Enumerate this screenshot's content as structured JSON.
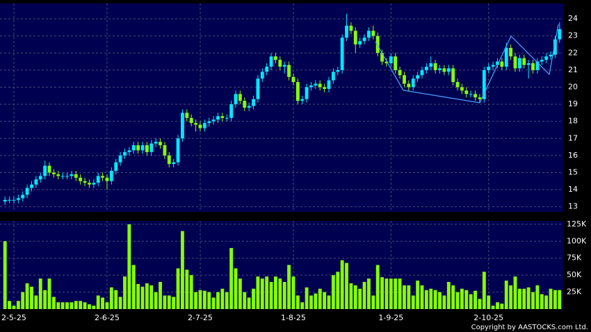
{
  "chart_data": {
    "type": "candlestick",
    "categories": [
      null,
      null,
      "2-5-25",
      null,
      null,
      null,
      null,
      null,
      null,
      null,
      null,
      null,
      null,
      null,
      null,
      null,
      null,
      null,
      null,
      null,
      null,
      null,
      null,
      "2-6-25",
      null,
      null,
      null,
      null,
      null,
      null,
      null,
      null,
      null,
      null,
      null,
      null,
      null,
      null,
      null,
      null,
      null,
      null,
      null,
      null,
      "2-7-25",
      null,
      null,
      null,
      null,
      null,
      null,
      null,
      null,
      null,
      null,
      null,
      null,
      null,
      null,
      null,
      null,
      null,
      null,
      null,
      null,
      "1-8-25",
      null,
      null,
      null,
      null,
      null,
      null,
      null,
      null,
      null,
      null,
      null,
      null,
      null,
      null,
      null,
      null,
      null,
      null,
      null,
      null,
      null,
      "1-9-25",
      null,
      null,
      null,
      null,
      null,
      null,
      null,
      null,
      null,
      null,
      null,
      null,
      null,
      null,
      null,
      null,
      null,
      null,
      null,
      null,
      null,
      "2-10-25",
      null,
      null,
      null,
      null,
      null,
      null,
      null,
      null,
      null,
      null,
      null,
      null,
      null,
      null,
      null,
      null
    ],
    "open": [
      13.3,
      13.4,
      13.4,
      13.4,
      13.5,
      13.7,
      14.1,
      14.3,
      14.6,
      14.8,
      15.4,
      15.0,
      14.9,
      14.8,
      14.8,
      14.8,
      14.9,
      14.7,
      14.5,
      14.4,
      14.3,
      14.4,
      14.8,
      14.7,
      14.5,
      15.1,
      15.6,
      16.0,
      16.2,
      16.3,
      16.6,
      16.3,
      16.6,
      16.2,
      16.7,
      16.8,
      16.6,
      16.0,
      15.5,
      15.6,
      17.0,
      18.5,
      18.2,
      17.9,
      17.8,
      17.6,
      17.9,
      18.0,
      18.1,
      18.3,
      18.2,
      18.2,
      19.0,
      19.6,
      19.2,
      18.8,
      18.9,
      19.3,
      20.5,
      20.9,
      21.2,
      21.8,
      21.6,
      21.2,
      21.3,
      20.6,
      20.3,
      19.2,
      19.3,
      20.0,
      20.1,
      20.2,
      20.0,
      19.9,
      20.4,
      20.9,
      21.0,
      22.9,
      23.6,
      23.3,
      22.5,
      22.7,
      22.9,
      23.3,
      23.0,
      22.0,
      21.5,
      21.4,
      21.8,
      21.0,
      20.7,
      20.2,
      20.0,
      20.5,
      20.7,
      21.0,
      21.2,
      21.4,
      21.0,
      21.1,
      20.9,
      21.1,
      20.3,
      20.0,
      19.8,
      19.6,
      19.6,
      19.4,
      19.3,
      21.0,
      21.2,
      21.3,
      21.5,
      21.2,
      22.3,
      21.8,
      21.1,
      21.7,
      21.3,
      21.4,
      21.0,
      21.5,
      21.6,
      21.8,
      21.9,
      22.8
    ],
    "high": [
      13.6,
      13.6,
      13.6,
      13.7,
      13.9,
      14.3,
      14.5,
      14.8,
      15.0,
      15.7,
      15.6,
      15.2,
      15.1,
      15.0,
      15.0,
      15.1,
      15.1,
      14.9,
      14.7,
      14.6,
      14.6,
      15.0,
      15.0,
      14.9,
      15.3,
      15.8,
      16.2,
      16.4,
      16.5,
      16.8,
      16.8,
      16.8,
      16.8,
      16.9,
      17.0,
      17.0,
      16.8,
      16.2,
      15.8,
      17.2,
      18.7,
      18.7,
      18.4,
      18.1,
      18.0,
      18.1,
      18.2,
      18.3,
      18.5,
      18.5,
      18.4,
      19.2,
      19.8,
      19.8,
      19.4,
      19.1,
      19.5,
      20.7,
      21.1,
      21.4,
      22.0,
      22.0,
      21.8,
      21.5,
      21.5,
      20.8,
      20.5,
      19.5,
      20.2,
      20.3,
      20.4,
      20.4,
      20.2,
      20.6,
      21.1,
      21.2,
      23.1,
      24.3,
      23.8,
      23.5,
      22.9,
      23.1,
      23.5,
      23.6,
      23.2,
      22.2,
      21.7,
      22.0,
      22.0,
      21.2,
      20.9,
      20.4,
      20.7,
      20.9,
      21.2,
      21.4,
      21.8,
      21.6,
      21.3,
      21.3,
      21.3,
      21.3,
      20.5,
      20.2,
      20.0,
      19.8,
      19.8,
      19.6,
      21.2,
      21.4,
      21.5,
      21.7,
      21.7,
      22.6,
      22.5,
      22.0,
      21.9,
      21.9,
      21.6,
      21.6,
      21.7,
      21.8,
      22.0,
      22.1,
      23.0,
      23.8
    ],
    "low": [
      13.1,
      13.2,
      13.2,
      13.2,
      13.3,
      13.5,
      13.9,
      14.1,
      14.4,
      14.6,
      14.8,
      14.7,
      14.6,
      14.6,
      14.6,
      14.6,
      14.5,
      14.3,
      14.2,
      14.1,
      14.1,
      14.2,
      14.5,
      14.0,
      14.3,
      14.9,
      15.4,
      15.8,
      16.0,
      16.1,
      16.1,
      16.1,
      16.0,
      16.0,
      16.5,
      16.4,
      15.8,
      15.3,
      15.3,
      15.4,
      16.8,
      18.0,
      17.7,
      17.4,
      17.4,
      17.4,
      17.7,
      17.8,
      17.9,
      18.0,
      18.0,
      18.0,
      18.8,
      19.0,
      18.6,
      18.6,
      18.7,
      19.1,
      20.3,
      20.7,
      21.0,
      21.4,
      21.0,
      20.8,
      20.4,
      20.1,
      19.0,
      19.0,
      19.1,
      19.8,
      19.9,
      19.8,
      19.7,
      19.7,
      20.2,
      20.7,
      20.8,
      22.7,
      23.1,
      22.0,
      22.3,
      22.5,
      22.7,
      22.8,
      21.8,
      21.3,
      21.2,
      21.2,
      20.8,
      20.5,
      20.0,
      19.8,
      19.8,
      20.3,
      20.5,
      20.8,
      21.0,
      20.8,
      20.8,
      20.7,
      20.7,
      20.1,
      19.8,
      19.6,
      19.4,
      19.4,
      19.2,
      19.1,
      19.1,
      20.8,
      21.0,
      21.1,
      21.0,
      21.0,
      21.6,
      20.9,
      20.9,
      21.1,
      20.5,
      20.8,
      20.8,
      21.3,
      21.4,
      21.6,
      21.7,
      22.6
    ],
    "close": [
      13.4,
      13.4,
      13.4,
      13.5,
      13.7,
      14.1,
      14.3,
      14.6,
      14.8,
      15.4,
      15.0,
      14.9,
      14.8,
      14.8,
      14.8,
      14.9,
      14.7,
      14.5,
      14.4,
      14.3,
      14.4,
      14.8,
      14.7,
      14.5,
      15.1,
      15.6,
      16.0,
      16.2,
      16.3,
      16.6,
      16.3,
      16.6,
      16.2,
      16.7,
      16.8,
      16.6,
      16.0,
      15.5,
      15.6,
      17.0,
      18.5,
      18.2,
      17.9,
      17.8,
      17.6,
      17.9,
      18.0,
      18.1,
      18.3,
      18.2,
      18.2,
      19.0,
      19.6,
      19.2,
      18.8,
      18.9,
      19.3,
      20.5,
      20.9,
      21.2,
      21.8,
      21.6,
      21.2,
      21.3,
      20.6,
      20.3,
      19.2,
      19.3,
      20.0,
      20.1,
      20.2,
      20.0,
      19.9,
      20.4,
      20.9,
      21.0,
      22.9,
      23.6,
      23.3,
      22.5,
      22.7,
      22.9,
      23.3,
      23.0,
      22.0,
      21.5,
      21.4,
      21.8,
      21.0,
      20.7,
      20.2,
      20.0,
      20.5,
      20.7,
      21.0,
      21.2,
      21.4,
      21.0,
      21.1,
      20.9,
      21.1,
      20.3,
      20.0,
      19.8,
      19.6,
      19.6,
      19.4,
      19.3,
      21.0,
      21.2,
      21.3,
      21.5,
      21.2,
      22.3,
      21.8,
      21.1,
      21.7,
      21.3,
      21.4,
      21.0,
      21.5,
      21.6,
      21.8,
      21.9,
      22.8,
      23.4
    ],
    "volume": [
      100000,
      12000,
      5000,
      12000,
      25000,
      38000,
      33000,
      20000,
      45000,
      28000,
      45000,
      18000,
      10000,
      10000,
      10000,
      10000,
      12000,
      12000,
      10000,
      7000,
      5000,
      20000,
      17000,
      10000,
      32000,
      28000,
      18000,
      48000,
      125000,
      65000,
      37000,
      33000,
      38000,
      35000,
      25000,
      40000,
      20000,
      20000,
      18000,
      60000,
      115000,
      58000,
      50000,
      25000,
      28000,
      27000,
      25000,
      17000,
      25000,
      30000,
      25000,
      90000,
      60000,
      45000,
      25000,
      17000,
      30000,
      48000,
      45000,
      48000,
      40000,
      48000,
      45000,
      40000,
      65000,
      48000,
      20000,
      10000,
      32000,
      20000,
      23000,
      30000,
      25000,
      20000,
      50000,
      55000,
      72000,
      68000,
      38000,
      35000,
      30000,
      40000,
      45000,
      20000,
      65000,
      47000,
      45000,
      45000,
      45000,
      45000,
      35000,
      35000,
      20000,
      42000,
      35000,
      28000,
      30000,
      28000,
      25000,
      20000,
      40000,
      35000,
      25000,
      30000,
      28000,
      22000,
      27000,
      15000,
      55000,
      20000,
      5000,
      10000,
      8000,
      42000,
      35000,
      48000,
      30000,
      30000,
      32000,
      25000,
      35000,
      22000,
      20000,
      30000,
      28000,
      28000
    ],
    "ylim": [
      12.7,
      24.9
    ],
    "yticks": [
      13,
      14,
      15,
      16,
      17,
      18,
      19,
      20,
      21,
      22,
      23,
      24
    ],
    "volume_ylim": [
      0,
      130000
    ],
    "volume_yticks": [
      {
        "value": 25000,
        "label": "25K"
      },
      {
        "value": 50000,
        "label": "50K"
      },
      {
        "value": 75000,
        "label": "75K"
      },
      {
        "value": 100000,
        "label": "100K"
      },
      {
        "value": 125000,
        "label": "125K"
      }
    ],
    "up_color": "#00e8ff",
    "down_color": "#88ff00",
    "volume_color": "#88ff00",
    "grid": true,
    "footnote": "Copyright by AASTOCKS.com Ltd."
  }
}
